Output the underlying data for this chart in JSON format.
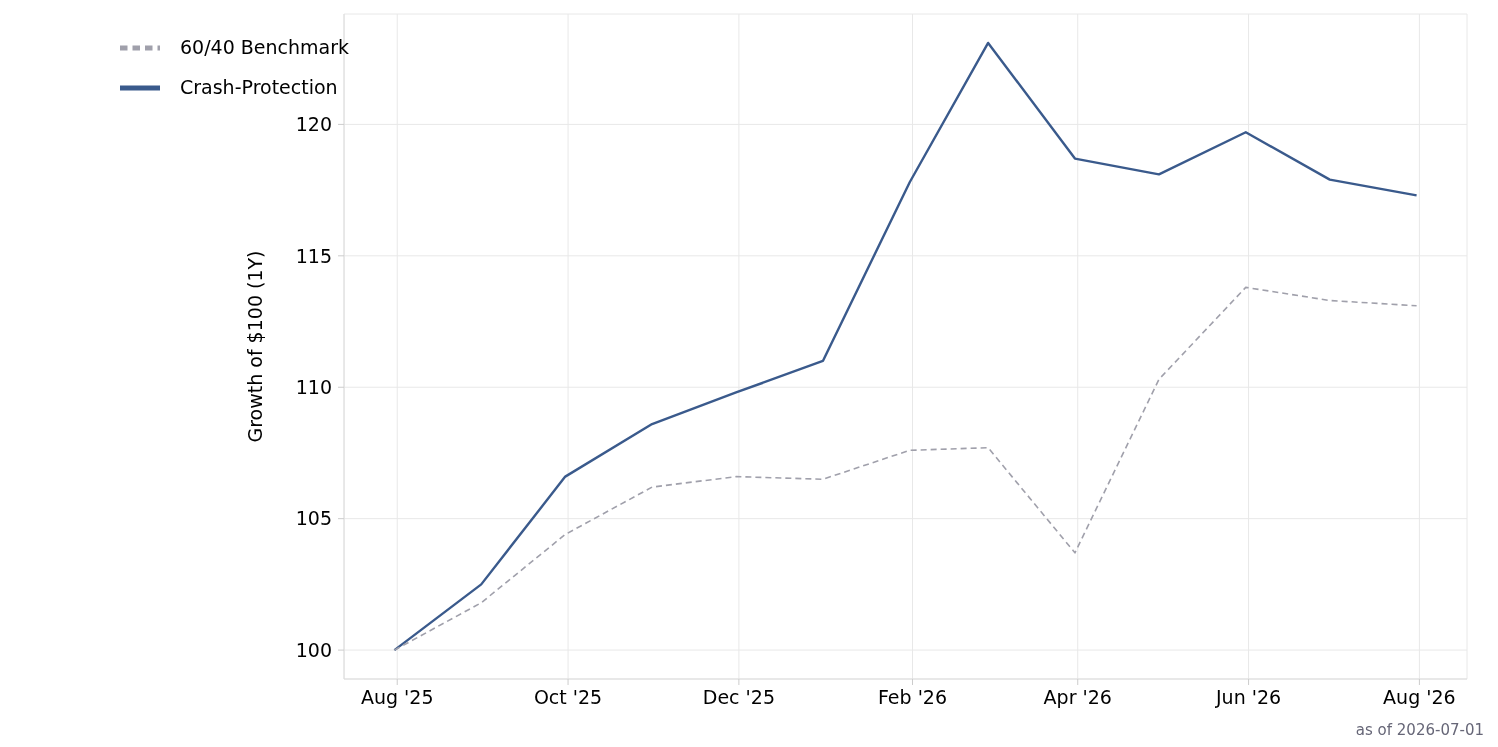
{
  "chart_data": {
    "type": "line",
    "ylabel": "Growth of $100 (1Y)",
    "x": [
      "2025-07-31",
      "2025-08-31",
      "2025-09-30",
      "2025-10-31",
      "2025-11-30",
      "2025-12-31",
      "2026-01-31",
      "2026-02-28",
      "2026-03-31",
      "2026-04-30",
      "2026-05-31",
      "2026-06-30",
      "2026-07-31"
    ],
    "series": [
      {
        "name": "Crash-Protection",
        "color": "#3a5a8c",
        "line_style": "solid",
        "values": [
          100,
          102.5,
          106.6,
          108.6,
          109.8,
          111.0,
          117.8,
          123.1,
          118.7,
          118.1,
          119.7,
          117.9,
          117.3
        ]
      },
      {
        "name": "60/40 Benchmark",
        "color": "#a0a0ab",
        "line_style": "dashed",
        "values": [
          100,
          101.8,
          104.4,
          106.2,
          106.6,
          106.5,
          107.6,
          107.7,
          103.7,
          110.3,
          113.8,
          113.3,
          113.1
        ]
      }
    ],
    "xlim": [
      "2025-07-13",
      "2026-08-18"
    ],
    "xticks": [
      {
        "value": "2025-08",
        "label": "Aug '25"
      },
      {
        "value": "2025-10",
        "label": "Oct '25"
      },
      {
        "value": "2025-12",
        "label": "Dec '25"
      },
      {
        "value": "2026-02",
        "label": "Feb '26"
      },
      {
        "value": "2026-04",
        "label": "Apr '26"
      },
      {
        "value": "2026-06",
        "label": "Jun '26"
      },
      {
        "value": "2026-08",
        "label": "Aug '26"
      }
    ],
    "ylim": [
      98.9,
      124.2
    ],
    "yticks": [
      100,
      105,
      110,
      115,
      120
    ],
    "grid": true,
    "legend": "top left",
    "marker": "none",
    "annotations": [
      "as of 2026-07-01"
    ]
  }
}
